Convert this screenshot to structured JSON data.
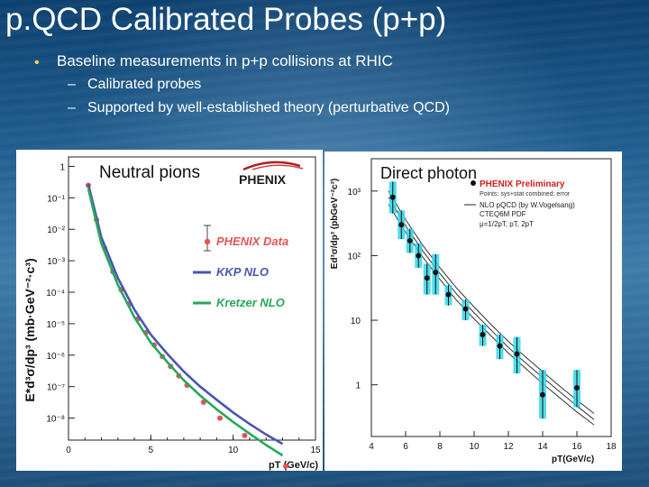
{
  "slide": {
    "title": "p.QCD Calibrated Probes (p+p)",
    "bullet": "Baseline measurements in p+p collisions at RHIC",
    "subbullets": [
      {
        "dash": "–",
        "text": "Calibrated probes"
      },
      {
        "dash": "–",
        "text": "Supported by well-established theory (perturbative QCD)"
      }
    ]
  },
  "chart_data": [
    {
      "type": "scatter",
      "label": "Neutral pions",
      "logo": "PHENIX",
      "xlabel": "pT (GeV/c)",
      "ylabel": "E*d³σ/dp³ (mb·GeV⁻²·c³)",
      "xlim": [
        0,
        15
      ],
      "ylim_log10": [
        -8.7,
        0.3
      ],
      "xticks": [
        "0",
        "5",
        "10",
        "15"
      ],
      "yticks": [
        {
          "exp": 0,
          "label": "1"
        },
        {
          "exp": -1,
          "label": "10⁻¹"
        },
        {
          "exp": -2,
          "label": "10⁻²"
        },
        {
          "exp": -3,
          "label": "10⁻³"
        },
        {
          "exp": -4,
          "label": "10⁻⁴"
        },
        {
          "exp": -5,
          "label": "10⁻⁵"
        },
        {
          "exp": -6,
          "label": "10⁻⁶"
        },
        {
          "exp": -7,
          "label": "10⁻⁷"
        },
        {
          "exp": -8,
          "label": "10⁻⁸"
        }
      ],
      "legend": [
        {
          "name": "PHENIX Data",
          "color": "#e05555",
          "style": "marker"
        },
        {
          "name": "KKP NLO",
          "color": "#4a55b5",
          "style": "line"
        },
        {
          "name": "Kretzer NLO",
          "color": "#27a85a",
          "style": "line"
        }
      ],
      "series": [
        {
          "name": "PHENIX Data",
          "color": "#e05555",
          "x": [
            1.2,
            1.7,
            2.2,
            2.7,
            3.2,
            3.7,
            4.2,
            4.7,
            5.2,
            5.7,
            6.2,
            6.7,
            7.2,
            8.2,
            9.2,
            10.7,
            13.2
          ],
          "y": [
            0.25,
            0.02,
            0.0025,
            0.00045,
            0.00012,
            4.2e-05,
            1.4e-05,
            5.2e-06,
            2.1e-06,
            9e-07,
            4.4e-07,
            2.2e-07,
            1.1e-07,
            3.2e-08,
            1e-08,
            2.8e-09,
            3e-10
          ]
        },
        {
          "name": "KKP NLO",
          "color": "#4a55b5",
          "x": [
            1.2,
            2,
            3,
            4,
            5,
            6,
            7,
            8,
            9,
            10,
            11,
            12,
            13
          ],
          "y": [
            0.28,
            0.0055,
            0.00028,
            2.8e-05,
            4.5e-06,
            1.1e-06,
            3e-07,
            1e-07,
            3.8e-08,
            1.5e-08,
            6.5e-09,
            3e-09,
            1.5e-09
          ]
        },
        {
          "name": "Kretzer NLO",
          "color": "#27a85a",
          "x": [
            1.2,
            2,
            3,
            4,
            5,
            6,
            7,
            8,
            9,
            10,
            11,
            12,
            13
          ],
          "y": [
            0.2,
            0.0035,
            0.00017,
            1.6e-05,
            2.5e-06,
            6e-07,
            1.6e-07,
            5.2e-08,
            1.9e-08,
            7.5e-09,
            3.2e-09,
            1.4e-09,
            6.5e-10
          ]
        }
      ]
    },
    {
      "type": "scatter",
      "label": "Direct photon",
      "xlabel": "pT(GeV/c)",
      "ylabel": "Ed³σ/dp³ (pbGeV⁻²c³)",
      "xlim": [
        4,
        18
      ],
      "ylim_log10": [
        -0.8,
        3.5
      ],
      "xticks": [
        "4",
        "6",
        "8",
        "10",
        "12",
        "14",
        "16",
        "18"
      ],
      "yticks": [
        {
          "exp": 3,
          "label": "10³"
        },
        {
          "exp": 2,
          "label": "10²"
        },
        {
          "exp": 1,
          "label": "10"
        },
        {
          "exp": 0,
          "label": "1"
        }
      ],
      "legend_lines": [
        {
          "text": "PHENIX Preliminary",
          "color": "#d22020"
        },
        {
          "text": "Points: sys+stat combined; error",
          "color": "#333333"
        },
        {
          "text": "NLO pQCD (by W.Vogelsang)",
          "color": "#222222"
        },
        {
          "text": "CTEQ6M PDF",
          "color": "#222222"
        },
        {
          "text": "μ=1/2pT, pT, 2pT",
          "color": "#222222"
        }
      ],
      "series": [
        {
          "name": "PHENIX Preliminary",
          "color": "#111111",
          "box_color": "#33d6e8",
          "x": [
            5.25,
            5.75,
            6.25,
            6.75,
            7.25,
            7.75,
            8.5,
            9.5,
            10.5,
            11.5,
            12.5,
            14,
            16
          ],
          "y": [
            800,
            300,
            170,
            100,
            45,
            55,
            25,
            15,
            6,
            4,
            3,
            0.7,
            0.9
          ],
          "err_low": [
            350,
            120,
            60,
            35,
            20,
            30,
            8,
            5,
            2,
            1.5,
            1.5,
            0.4,
            0.45
          ],
          "err_high": [
            600,
            200,
            90,
            55,
            30,
            50,
            10,
            6,
            2.5,
            2,
            2.5,
            1,
            0.8
          ]
        },
        {
          "name": "μ=pT/2",
          "color": "#333333",
          "x": [
            5,
            6,
            7,
            8,
            9,
            10,
            11,
            12,
            13,
            14,
            15,
            16,
            17
          ],
          "y": [
            1000,
            360,
            145,
            65,
            31,
            16,
            8.5,
            4.7,
            2.7,
            1.6,
            0.95,
            0.58,
            0.36
          ]
        },
        {
          "name": "μ=pT",
          "color": "#333333",
          "x": [
            5,
            6,
            7,
            8,
            9,
            10,
            11,
            12,
            13,
            14,
            15,
            16,
            17
          ],
          "y": [
            800,
            290,
            118,
            53,
            25,
            13,
            7,
            3.8,
            2.2,
            1.3,
            0.78,
            0.47,
            0.29
          ]
        },
        {
          "name": "μ=2pT",
          "color": "#333333",
          "x": [
            5,
            6,
            7,
            8,
            9,
            10,
            11,
            12,
            13,
            14,
            15,
            16,
            17
          ],
          "y": [
            620,
            230,
            95,
            43,
            20,
            10.5,
            5.7,
            3.1,
            1.8,
            1.05,
            0.63,
            0.38,
            0.24
          ]
        }
      ]
    }
  ]
}
